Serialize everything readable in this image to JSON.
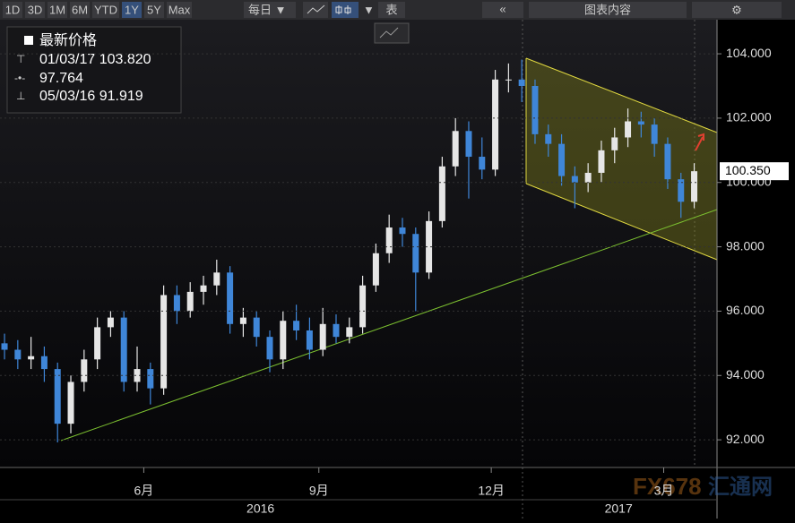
{
  "toolbar": {
    "ranges": [
      "1D",
      "3D",
      "1M",
      "6M",
      "YTD",
      "1Y",
      "5Y",
      "Max"
    ],
    "selected": 5,
    "frequency": "每日 ▼",
    "table": "表",
    "collapse": "«",
    "chart_contents": "图表内容",
    "settings": "⚙"
  },
  "watermark": [
    "FX678",
    "汇通网"
  ],
  "chart_data": {
    "type": "candlestick",
    "legend": {
      "title": "最新价格",
      "high": "01/03/17 103.820",
      "average": "97.764",
      "low": "05/03/16 91.919"
    },
    "up_color": "#e6e6e6",
    "down_color": "#3f86d8",
    "ohlc": [
      [
        95.0,
        95.3,
        94.5,
        94.8
      ],
      [
        94.8,
        95.1,
        94.2,
        94.5
      ],
      [
        94.5,
        95.2,
        94.2,
        94.6
      ],
      [
        94.6,
        94.9,
        93.8,
        94.2
      ],
      [
        94.2,
        94.4,
        91.919,
        92.5
      ],
      [
        92.5,
        94.0,
        92.2,
        93.8
      ],
      [
        93.8,
        94.8,
        93.5,
        94.5
      ],
      [
        94.5,
        95.8,
        94.2,
        95.5
      ],
      [
        95.5,
        96.0,
        95.2,
        95.8
      ],
      [
        95.8,
        96.0,
        93.5,
        93.8
      ],
      [
        93.8,
        94.9,
        93.5,
        94.2
      ],
      [
        94.2,
        94.4,
        93.1,
        93.6
      ],
      [
        93.6,
        96.8,
        93.4,
        96.5
      ],
      [
        96.5,
        96.8,
        95.6,
        96.0
      ],
      [
        96.0,
        96.9,
        95.8,
        96.6
      ],
      [
        96.6,
        97.1,
        96.2,
        96.8
      ],
      [
        96.8,
        97.6,
        96.5,
        97.2
      ],
      [
        97.2,
        97.4,
        95.3,
        95.6
      ],
      [
        95.6,
        96.1,
        95.2,
        95.8
      ],
      [
        95.8,
        96.0,
        94.9,
        95.2
      ],
      [
        95.2,
        95.4,
        94.1,
        94.5
      ],
      [
        94.5,
        96.0,
        94.2,
        95.7
      ],
      [
        95.7,
        96.2,
        95.1,
        95.4
      ],
      [
        95.4,
        95.8,
        94.5,
        94.8
      ],
      [
        94.8,
        96.1,
        94.6,
        95.6
      ],
      [
        95.6,
        95.9,
        95.0,
        95.2
      ],
      [
        95.2,
        95.8,
        95.0,
        95.5
      ],
      [
        95.5,
        97.1,
        95.3,
        96.8
      ],
      [
        96.8,
        98.1,
        96.6,
        97.8
      ],
      [
        97.8,
        99.0,
        97.5,
        98.6
      ],
      [
        98.6,
        98.9,
        98.0,
        98.4
      ],
      [
        98.4,
        98.6,
        96.0,
        97.2
      ],
      [
        97.2,
        99.1,
        97.0,
        98.8
      ],
      [
        98.8,
        100.8,
        98.6,
        100.5
      ],
      [
        100.5,
        102.0,
        100.2,
        101.6
      ],
      [
        101.6,
        101.9,
        99.5,
        100.8
      ],
      [
        100.8,
        101.4,
        100.1,
        100.4
      ],
      [
        100.4,
        103.5,
        100.2,
        103.2
      ],
      [
        103.2,
        103.7,
        102.8,
        103.2
      ],
      [
        103.2,
        103.82,
        102.5,
        103.0
      ],
      [
        103.0,
        103.2,
        101.2,
        101.5
      ],
      [
        101.5,
        101.8,
        100.8,
        101.2
      ],
      [
        101.2,
        101.5,
        99.9,
        100.2
      ],
      [
        100.2,
        100.5,
        99.2,
        100.0
      ],
      [
        100.0,
        100.6,
        99.7,
        100.3
      ],
      [
        100.3,
        101.3,
        100.0,
        101.0
      ],
      [
        101.0,
        101.7,
        100.6,
        101.4
      ],
      [
        101.4,
        102.3,
        101.1,
        101.9
      ],
      [
        101.9,
        102.2,
        101.4,
        101.8
      ],
      [
        101.8,
        102.0,
        100.8,
        101.2
      ],
      [
        101.2,
        101.4,
        99.8,
        100.1
      ],
      [
        100.1,
        100.3,
        98.9,
        99.4
      ],
      [
        99.4,
        100.6,
        99.2,
        100.35
      ]
    ],
    "last_price": {
      "value": 100.35,
      "label": "100.350"
    },
    "xlim": [
      -0.34,
      53.72
    ],
    "xticks": [
      {
        "value": 10.5,
        "label": "6月"
      },
      {
        "value": 23.7,
        "label": "9月"
      },
      {
        "value": 36.7,
        "label": "12月"
      },
      {
        "value": 49.7,
        "label": "3月"
      }
    ],
    "year_ticks": [
      {
        "value": 19.3,
        "label": "2016"
      },
      {
        "value": 46.3,
        "label": "2017"
      }
    ],
    "ylim": [
      91.14,
      105.06
    ],
    "yticks": [
      {
        "value": 92,
        "label": "92.000"
      },
      {
        "value": 94,
        "label": "94.000"
      },
      {
        "value": 96,
        "label": "96.000"
      },
      {
        "value": 98,
        "label": "98.000"
      },
      {
        "value": 100,
        "label": "100.000"
      },
      {
        "value": 102,
        "label": "102.000"
      },
      {
        "value": 104,
        "label": "104.000"
      }
    ]
  }
}
